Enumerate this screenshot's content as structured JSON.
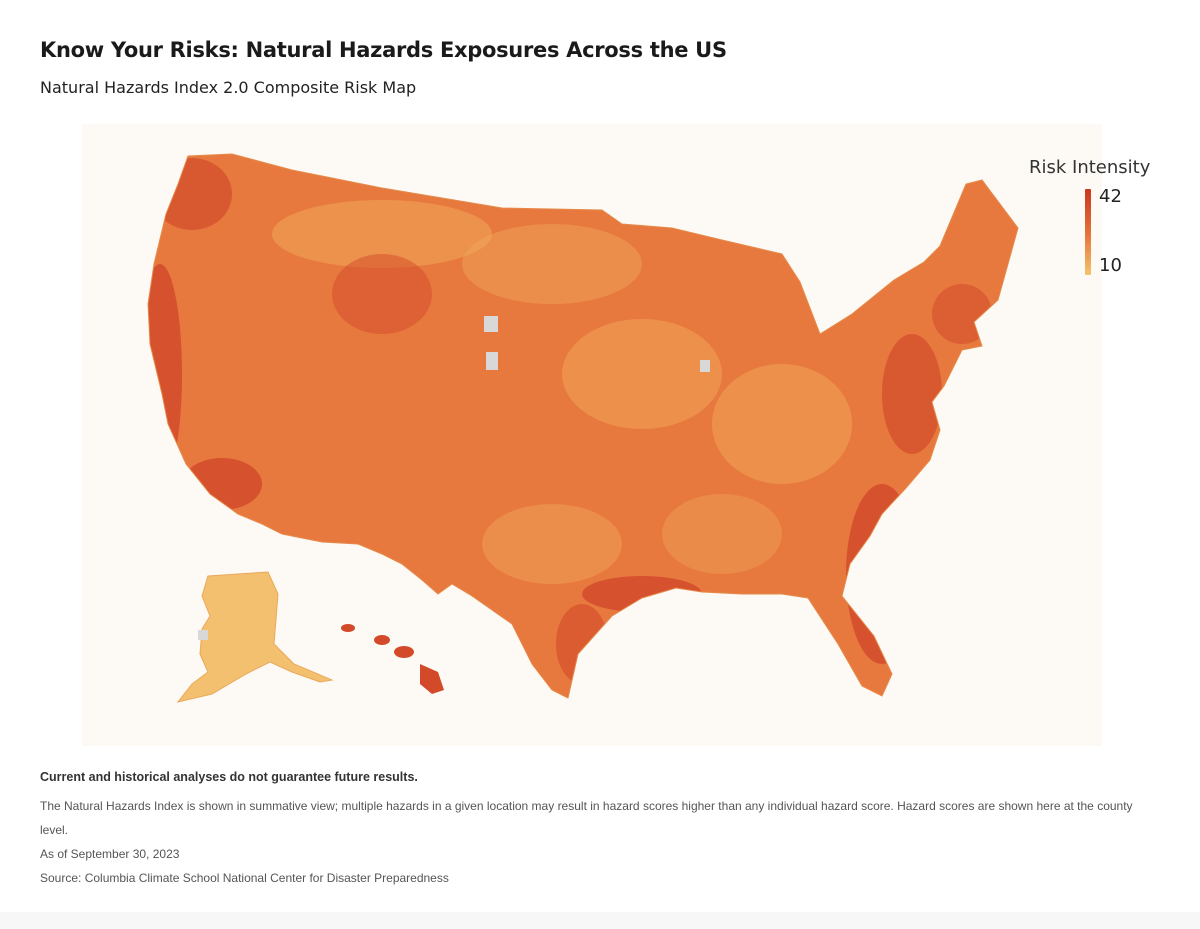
{
  "header": {
    "title": "Know Your Risks: Natural Hazards Exposures Across the US",
    "subtitle": "Natural Hazards Index 2.0 Composite Risk Map"
  },
  "legend": {
    "title": "Risk Intensity",
    "max_label": "42",
    "min_label": "10",
    "max_color": "#c8371f",
    "min_color": "#f3c36c"
  },
  "map_colors": {
    "base": "#e8793e",
    "low": "#f0a75a",
    "high": "#d24a2a",
    "alaska": "#f3c070",
    "nodata": "#d8d8d8",
    "background": "#fdfaf5"
  },
  "notes": {
    "disclaimer": "Current and historical analyses do not guarantee future results.",
    "description": "The Natural Hazards Index is shown in summative view; multiple hazards in a given location may result in hazard scores higher than any individual hazard score. Hazard scores are shown here at the county level.",
    "as_of": "As of September 30, 2023",
    "source": "Source: Columbia Climate School National Center for Disaster Preparedness"
  }
}
